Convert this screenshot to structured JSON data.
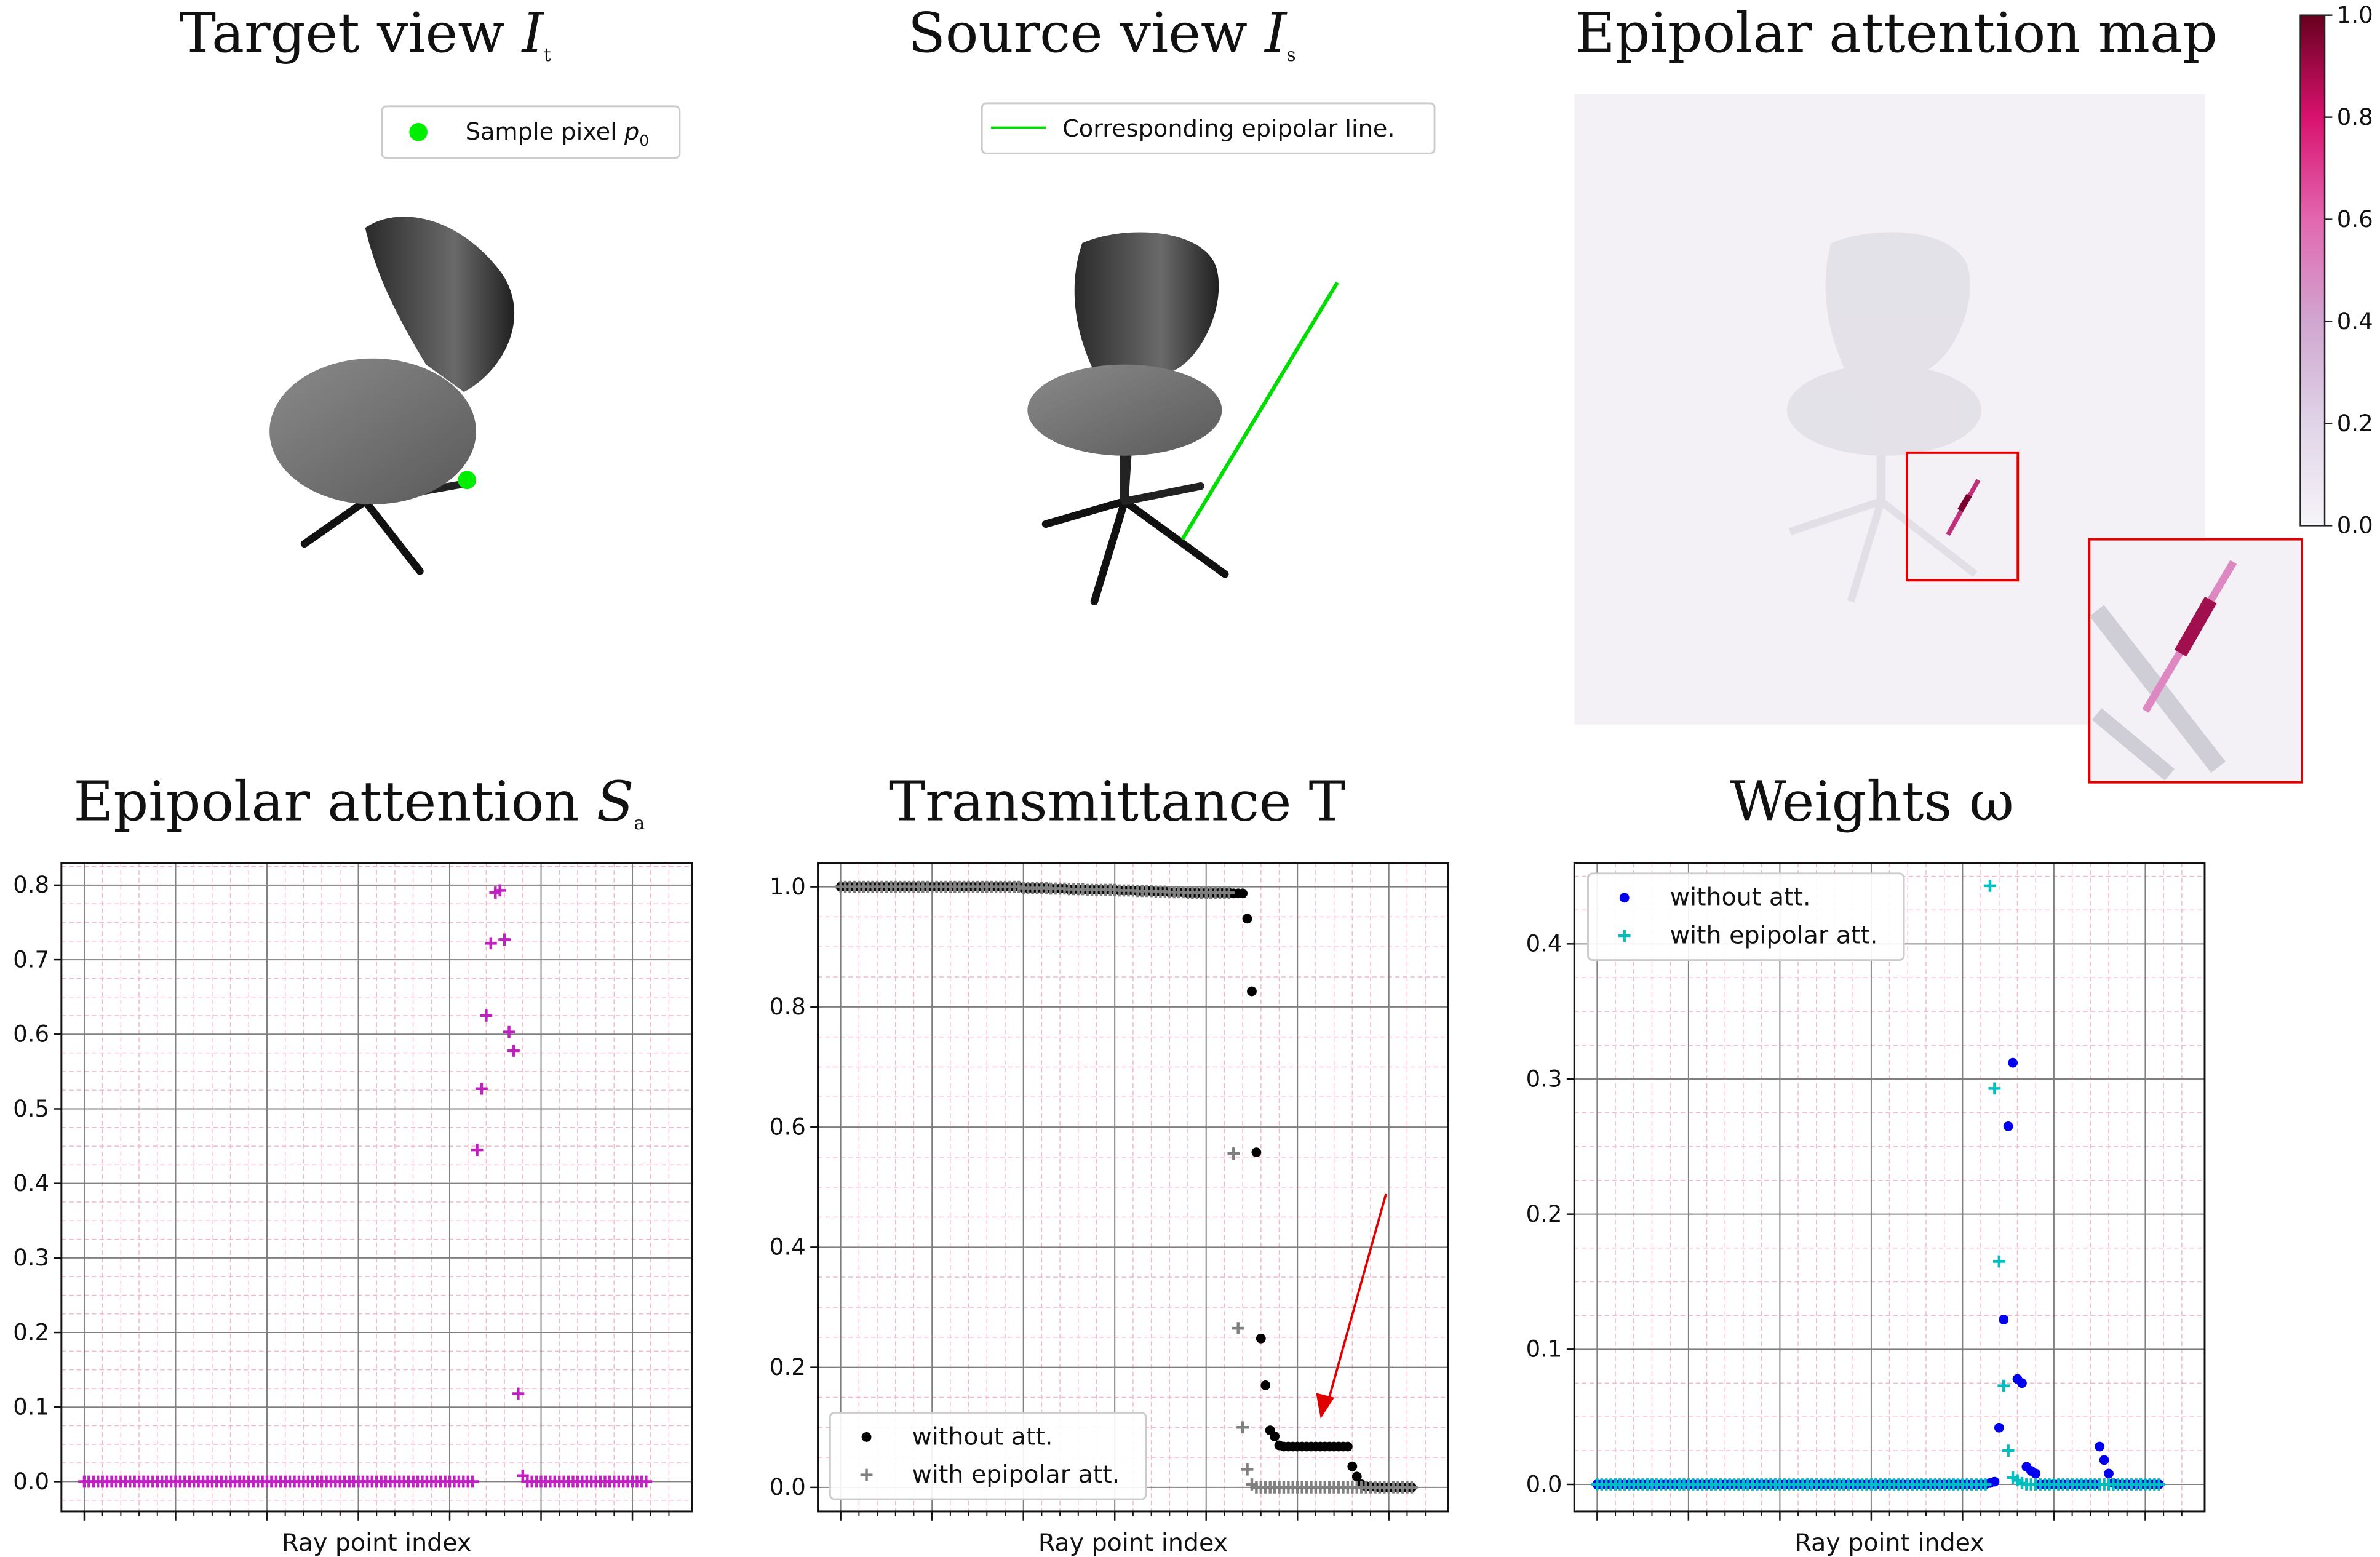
{
  "titles": {
    "target_view": "Target view",
    "target_view_sym": "I",
    "target_view_sub": "t",
    "source_view": "Source view",
    "source_view_sym": "I",
    "source_view_sub": "s",
    "attention_map": "Epipolar attention map",
    "epipolar_attention": "Epipolar attention",
    "epipolar_attention_sym": "S",
    "epipolar_attention_sub": "a",
    "transmittance": "Transmittance T",
    "weights": "Weights",
    "weights_sym": "ω"
  },
  "legends": {
    "sample_pixel": "Sample pixel",
    "sample_pixel_sym": "p",
    "sample_pixel_sub": "0",
    "epipolar_line": "Corresponding epipolar line.",
    "without_att": "without att.",
    "with_epipolar_att": "with epipolar att."
  },
  "colors": {
    "sample_pixel": "#00ee00",
    "epipolar_line": "#00dd00",
    "attention_plus": "#c020c0",
    "without_att_trans": "#000000",
    "with_att_trans": "#808080",
    "without_att_weights": "#0000ee",
    "with_att_weights": "#00bfbf",
    "zoom_box": "#e00000",
    "arrow": "#e00000",
    "grid_major": "#808080",
    "grid_minor": "#f4b8c6"
  },
  "colorbar": {
    "min": 0.0,
    "max": 1.0,
    "ticks": [
      "0.0",
      "0.2",
      "0.4",
      "0.6",
      "0.8",
      "1.0"
    ],
    "colormap": "PuRd"
  },
  "chart_data": [
    {
      "type": "scatter",
      "title": "Epipolar attention S_a",
      "xlabel": "Ray point index",
      "ylabel": "",
      "xlim": [
        -5,
        133
      ],
      "ylim": [
        -0.04,
        0.83
      ],
      "yticks": [
        "0.0",
        "0.1",
        "0.2",
        "0.3",
        "0.4",
        "0.5",
        "0.6",
        "0.7",
        "0.8"
      ],
      "grid": true,
      "series": [
        {
          "marker": "plus",
          "values": [
            0,
            0,
            0,
            0,
            0,
            0,
            0,
            0,
            0,
            0,
            0,
            0,
            0,
            0,
            0,
            0,
            0,
            0,
            0,
            0,
            0,
            0,
            0,
            0,
            0,
            0,
            0,
            0,
            0,
            0,
            0,
            0,
            0,
            0,
            0,
            0,
            0,
            0,
            0,
            0,
            0,
            0,
            0,
            0,
            0,
            0,
            0,
            0,
            0,
            0,
            0,
            0,
            0,
            0,
            0,
            0,
            0,
            0,
            0,
            0,
            0,
            0,
            0,
            0,
            0,
            0,
            0,
            0,
            0,
            0,
            0,
            0,
            0,
            0,
            0,
            0,
            0,
            0,
            0,
            0,
            0,
            0,
            0,
            0,
            0,
            0,
            0.445,
            0.527,
            0.625,
            0.722,
            0.79,
            0.793,
            0.727,
            0.603,
            0.578,
            0.118,
            0.008,
            0,
            0,
            0,
            0,
            0,
            0,
            0,
            0,
            0,
            0,
            0,
            0,
            0,
            0,
            0,
            0,
            0,
            0,
            0,
            0,
            0,
            0,
            0,
            0,
            0,
            0,
            0
          ]
        }
      ]
    },
    {
      "type": "scatter",
      "title": "Transmittance T",
      "xlabel": "Ray point index",
      "ylabel": "",
      "xlim": [
        -5,
        133
      ],
      "ylim": [
        -0.04,
        1.04
      ],
      "yticks": [
        "0.0",
        "0.2",
        "0.4",
        "0.6",
        "0.8",
        "1.0"
      ],
      "grid": true,
      "annotation": "red arrow pointing to plateau of 'without att.' near 0.07",
      "legend_loc": "lower left",
      "series": [
        {
          "name": "without att.",
          "marker": "dot",
          "values": [
            1,
            1,
            1,
            1,
            1,
            1,
            1,
            1,
            1,
            1,
            1,
            1,
            1,
            1,
            1,
            1,
            1,
            1,
            1,
            1,
            1,
            1,
            1,
            1,
            1,
            1,
            1,
            1,
            1,
            1,
            1,
            1,
            1,
            1,
            1,
            1,
            1,
            1,
            1,
            1,
            0.998,
            0.998,
            0.998,
            0.998,
            0.998,
            0.998,
            0.997,
            0.997,
            0.997,
            0.997,
            0.996,
            0.996,
            0.996,
            0.996,
            0.995,
            0.995,
            0.995,
            0.995,
            0.995,
            0.995,
            0.995,
            0.994,
            0.994,
            0.994,
            0.994,
            0.993,
            0.993,
            0.993,
            0.993,
            0.992,
            0.992,
            0.992,
            0.991,
            0.991,
            0.991,
            0.991,
            0.99,
            0.99,
            0.99,
            0.99,
            0.99,
            0.99,
            0.99,
            0.99,
            0.99,
            0.99,
            0.989,
            0.989,
            0.989,
            0.947,
            0.826,
            0.558,
            0.248,
            0.17,
            0.095,
            0.085,
            0.07,
            0.068,
            0.068,
            0.068,
            0.068,
            0.068,
            0.068,
            0.068,
            0.068,
            0.068,
            0.068,
            0.068,
            0.068,
            0.068,
            0.068,
            0.068,
            0.035,
            0.018,
            0.005,
            0.002,
            0.001,
            0.001,
            0,
            0,
            0,
            0,
            0,
            0,
            0,
            0
          ]
        },
        {
          "name": "with epipolar att.",
          "marker": "plus",
          "values": [
            1,
            1,
            1,
            1,
            1,
            1,
            1,
            1,
            1,
            1,
            1,
            1,
            1,
            1,
            1,
            1,
            1,
            1,
            1,
            1,
            1,
            1,
            1,
            1,
            1,
            1,
            1,
            1,
            1,
            1,
            1,
            1,
            1,
            1,
            1,
            1,
            1,
            1,
            1,
            1,
            0.998,
            0.998,
            0.998,
            0.998,
            0.998,
            0.998,
            0.997,
            0.997,
            0.997,
            0.997,
            0.996,
            0.996,
            0.996,
            0.996,
            0.995,
            0.995,
            0.995,
            0.995,
            0.995,
            0.995,
            0.995,
            0.994,
            0.994,
            0.994,
            0.994,
            0.993,
            0.993,
            0.993,
            0.993,
            0.992,
            0.992,
            0.992,
            0.991,
            0.991,
            0.991,
            0.991,
            0.99,
            0.99,
            0.99,
            0.99,
            0.99,
            0.99,
            0.99,
            0.99,
            0.99,
            0.99,
            0.556,
            0.265,
            0.1,
            0.03,
            0.005,
            0,
            0,
            0,
            0,
            0,
            0,
            0,
            0,
            0,
            0,
            0,
            0,
            0,
            0,
            0,
            0,
            0,
            0,
            0,
            0,
            0,
            0,
            0,
            0,
            0,
            0,
            0,
            0,
            0,
            0,
            0,
            0,
            0,
            0,
            0
          ]
        }
      ]
    },
    {
      "type": "scatter",
      "title": "Weights ω",
      "xlabel": "Ray point index",
      "ylabel": "",
      "xlim": [
        -5,
        133
      ],
      "ylim": [
        -0.02,
        0.46
      ],
      "yticks": [
        "0.0",
        "0.1",
        "0.2",
        "0.3",
        "0.4"
      ],
      "grid": true,
      "legend_loc": "upper left",
      "series": [
        {
          "name": "without att.",
          "marker": "dot",
          "values": [
            0,
            0,
            0,
            0,
            0,
            0,
            0,
            0,
            0,
            0,
            0,
            0,
            0,
            0,
            0,
            0,
            0,
            0,
            0,
            0,
            0,
            0,
            0,
            0,
            0,
            0,
            0,
            0,
            0,
            0,
            0,
            0,
            0,
            0,
            0,
            0,
            0,
            0,
            0,
            0,
            0,
            0,
            0,
            0,
            0,
            0,
            0,
            0,
            0,
            0,
            0,
            0,
            0,
            0,
            0,
            0,
            0,
            0,
            0,
            0,
            0,
            0,
            0,
            0,
            0,
            0,
            0,
            0,
            0,
            0,
            0,
            0,
            0,
            0,
            0,
            0,
            0,
            0,
            0,
            0,
            0,
            0,
            0,
            0,
            0,
            0,
            0.001,
            0.002,
            0.042,
            0.122,
            0.265,
            0.312,
            0.078,
            0.075,
            0.013,
            0.01,
            0.008,
            0,
            0,
            0,
            0,
            0,
            0,
            0,
            0,
            0,
            0,
            0,
            0,
            0,
            0.028,
            0.018,
            0.008,
            0.001,
            0,
            0,
            0,
            0,
            0,
            0,
            0,
            0,
            0,
            0
          ]
        },
        {
          "name": "with epipolar att.",
          "marker": "plus",
          "values": [
            0,
            0,
            0,
            0,
            0,
            0,
            0,
            0,
            0,
            0,
            0,
            0,
            0,
            0,
            0,
            0,
            0,
            0,
            0,
            0,
            0,
            0,
            0,
            0,
            0,
            0,
            0,
            0,
            0,
            0,
            0,
            0,
            0,
            0,
            0,
            0,
            0,
            0,
            0,
            0,
            0,
            0,
            0,
            0,
            0,
            0,
            0,
            0,
            0,
            0,
            0,
            0,
            0,
            0,
            0,
            0,
            0,
            0,
            0,
            0,
            0,
            0,
            0,
            0,
            0,
            0,
            0,
            0,
            0,
            0,
            0,
            0,
            0,
            0,
            0,
            0,
            0,
            0,
            0,
            0,
            0,
            0,
            0,
            0,
            0,
            0,
            0.443,
            0.293,
            0.165,
            0.073,
            0.025,
            0.005,
            0.003,
            0.001,
            0,
            0,
            0,
            0,
            0,
            0,
            0,
            0,
            0,
            0,
            0,
            0,
            0,
            0,
            0,
            0,
            0,
            0,
            0,
            0,
            0,
            0,
            0,
            0,
            0,
            0,
            0,
            0,
            0,
            0
          ]
        }
      ]
    }
  ]
}
